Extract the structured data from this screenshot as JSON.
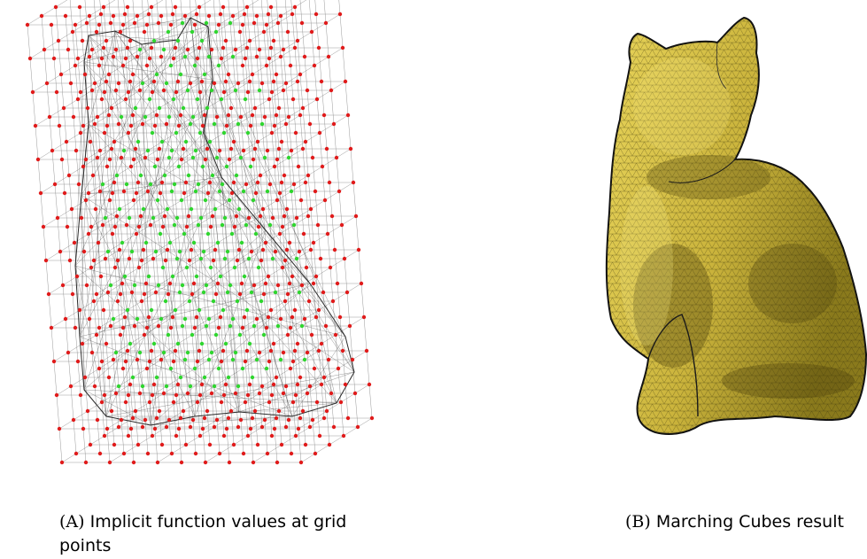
{
  "figure": {
    "panel_a": {
      "caption_letter": "(A)",
      "caption_text": "Implicit function values at grid points",
      "colors": {
        "inside": "#2fd62f",
        "outside": "#e01b1b",
        "grid": "#9a9a9a",
        "mesh": "#2b2b2b"
      }
    },
    "panel_b": {
      "caption_letter": "(B)",
      "caption_text": "Marching Cubes result",
      "colors": {
        "surface": "#d9c44a",
        "shadow": "#6b5d12",
        "edge": "#1a1a1a"
      }
    }
  }
}
